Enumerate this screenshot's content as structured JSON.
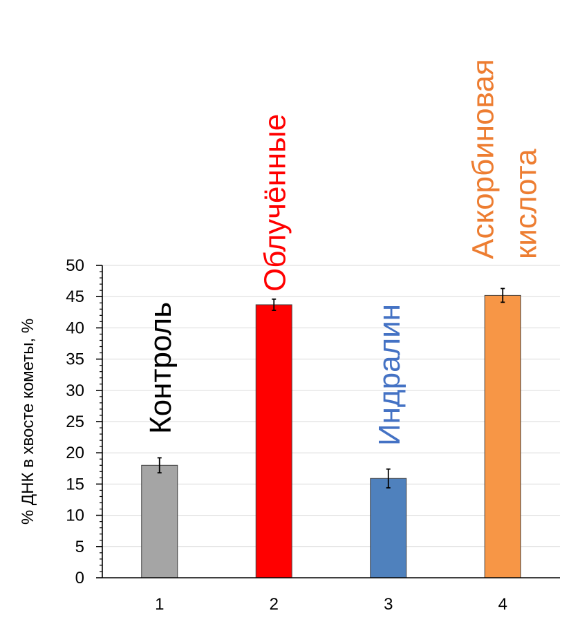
{
  "chart_data": {
    "type": "bar",
    "categories": [
      "1",
      "2",
      "3",
      "4"
    ],
    "values": [
      18.0,
      43.7,
      15.9,
      45.2
    ],
    "errors": [
      1.2,
      0.9,
      1.5,
      1.1
    ],
    "bar_colors": [
      "#a5a5a5",
      "#ff0000",
      "#4f81bd",
      "#f79646"
    ],
    "bar_labels": [
      {
        "lines": [
          "Контроль"
        ],
        "color": "#000000"
      },
      {
        "lines": [
          "Облучённые"
        ],
        "color": "#ff0000"
      },
      {
        "lines": [
          "Индралин"
        ],
        "color": "#4472c4"
      },
      {
        "lines": [
          "Аскорбиновая",
          "кислота"
        ],
        "color": "#ed7d31"
      }
    ],
    "title": "",
    "xlabel": "",
    "ylabel": "% ДНК в хвосте кометы, %",
    "ylim": [
      0,
      50
    ],
    "ytick_step": 5,
    "yticks": [
      "0",
      "5",
      "10",
      "15",
      "20",
      "25",
      "30",
      "35",
      "40",
      "45",
      "50"
    ],
    "grid": true,
    "gridline_color": "#d9d9d9"
  }
}
